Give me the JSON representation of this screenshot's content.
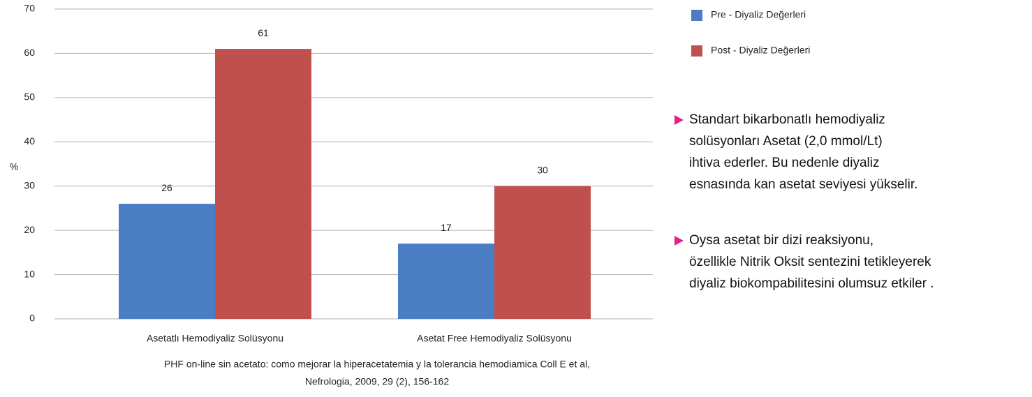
{
  "chart_data": {
    "type": "bar",
    "y_label": "%",
    "categories": [
      "Asetatlı Hemodiyaliz Solüsyonu",
      "Asetat Free Hemodiyaliz Solüsyonu"
    ],
    "series": [
      {
        "name": "Pre - Diyaliz Değerleri",
        "color": "#4a7dc4",
        "values": [
          26,
          17
        ]
      },
      {
        "name": "Post - Diyaliz Değerleri",
        "color": "#c0504d",
        "values": [
          61,
          30
        ]
      }
    ],
    "ylim": [
      0,
      70
    ],
    "yticks": [
      0,
      10,
      20,
      30,
      40,
      50,
      60,
      70
    ],
    "grid": true,
    "caption": [
      "PHF on-line sin acetato: como mejorar la hiperacetatemia y la tolerancia hemodiamica Coll E et al,",
      "Nefrologia, 2009, 29 (2), 156-162"
    ]
  },
  "bullets": [
    [
      "Standart bikarbonatlı hemodiyaliz",
      "solüsyonları  Asetat  (2,0 mmol/Lt)",
      "ihtiva ederler.  Bu nedenle diyaliz",
      "esnasında kan asetat seviyesi yükselir."
    ],
    [
      "Oysa  asetat bir dizi reaksiyonu,",
      "özellikle  Nitrik Oksit sentezini tetikleyerek",
      "diyaliz biokompabilitesini olumsuz etkiler ."
    ]
  ]
}
